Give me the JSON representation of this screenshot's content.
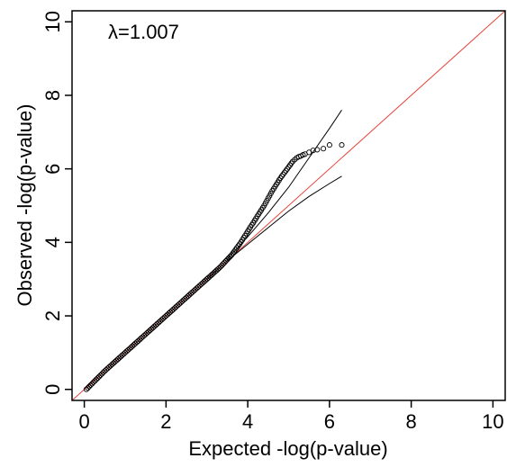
{
  "chart_data": {
    "type": "scatter",
    "title": "",
    "annotation": "λ=1.007",
    "xlabel": "Expected -log(p-value)",
    "ylabel": "Observed -log(p-value)",
    "xlim": [
      -0.3,
      10.3
    ],
    "ylim": [
      -0.3,
      10.3
    ],
    "xticks": [
      0,
      2,
      4,
      6,
      8,
      10
    ],
    "yticks": [
      0,
      2,
      4,
      6,
      8,
      10
    ],
    "grid": false,
    "legend": "none",
    "colors": {
      "points": "#000000",
      "reference_line": "#e8413a",
      "confidence_band": "#000000",
      "frame": "#000000"
    },
    "reference_line": {
      "x": [
        -0.3,
        10.3
      ],
      "y": [
        -0.3,
        10.3
      ]
    },
    "confidence_upper": {
      "x": [
        3.5,
        4.0,
        4.5,
        5.0,
        5.5,
        6.0,
        6.3
      ],
      "y": [
        3.55,
        4.15,
        4.8,
        5.5,
        6.3,
        7.1,
        7.6
      ]
    },
    "confidence_lower": {
      "x": [
        3.5,
        4.0,
        4.5,
        5.0,
        5.5,
        6.0,
        6.3
      ],
      "y": [
        3.5,
        3.95,
        4.4,
        4.85,
        5.25,
        5.6,
        5.8
      ]
    },
    "observed_curve": {
      "x": [
        0.05,
        0.5,
        1.0,
        1.5,
        2.0,
        2.5,
        3.0,
        3.3,
        3.6,
        3.8,
        4.0,
        4.2,
        4.4,
        4.6,
        4.8,
        5.0,
        5.1
      ],
      "y": [
        0.0,
        0.5,
        1.0,
        1.5,
        2.0,
        2.5,
        3.0,
        3.3,
        3.65,
        3.95,
        4.3,
        4.65,
        5.0,
        5.4,
        5.75,
        6.05,
        6.2
      ]
    },
    "tail_points": [
      {
        "x": 5.1,
        "y": 6.2
      },
      {
        "x": 5.15,
        "y": 6.25
      },
      {
        "x": 5.2,
        "y": 6.3
      },
      {
        "x": 5.25,
        "y": 6.33
      },
      {
        "x": 5.3,
        "y": 6.35
      },
      {
        "x": 5.35,
        "y": 6.38
      },
      {
        "x": 5.4,
        "y": 6.4
      },
      {
        "x": 5.5,
        "y": 6.45
      },
      {
        "x": 5.6,
        "y": 6.5
      },
      {
        "x": 5.7,
        "y": 6.52
      },
      {
        "x": 5.85,
        "y": 6.55
      },
      {
        "x": 6.0,
        "y": 6.65
      },
      {
        "x": 6.3,
        "y": 6.65
      }
    ]
  }
}
